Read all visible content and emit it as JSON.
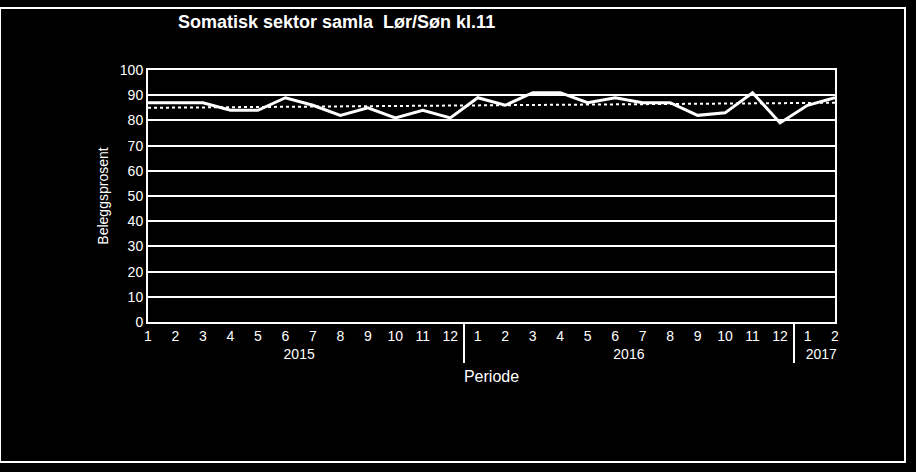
{
  "chart_data": {
    "type": "line",
    "title": "Somatisk sektor samla  Lør/Søn kl.11",
    "x_label": "Periode",
    "y_label": "Beleggsprosent",
    "categories": [
      [
        "2015",
        "1"
      ],
      [
        "2015",
        "2"
      ],
      [
        "2015",
        "3"
      ],
      [
        "2015",
        "4"
      ],
      [
        "2015",
        "5"
      ],
      [
        "2015",
        "6"
      ],
      [
        "2015",
        "7"
      ],
      [
        "2015",
        "8"
      ],
      [
        "2015",
        "9"
      ],
      [
        "2015",
        "10"
      ],
      [
        "2015",
        "11"
      ],
      [
        "2015",
        "12"
      ],
      [
        "2016",
        "1"
      ],
      [
        "2016",
        "2"
      ],
      [
        "2016",
        "3"
      ],
      [
        "2016",
        "4"
      ],
      [
        "2016",
        "5"
      ],
      [
        "2016",
        "6"
      ],
      [
        "2016",
        "7"
      ],
      [
        "2016",
        "8"
      ],
      [
        "2016",
        "9"
      ],
      [
        "2016",
        "10"
      ],
      [
        "2016",
        "11"
      ],
      [
        "2016",
        "12"
      ],
      [
        "2017",
        "1"
      ],
      [
        "2017",
        "2"
      ]
    ],
    "series": [
      {
        "color": "#ffffff",
        "line_style": "solid",
        "values": [
          87,
          87,
          87,
          84,
          84,
          89,
          86,
          82,
          85,
          81,
          84,
          81,
          89,
          86,
          91,
          91,
          87,
          89,
          87,
          87,
          82,
          83,
          91,
          79,
          86,
          89
        ]
      },
      {
        "color": "#ffffff",
        "line_style": "dotted",
        "values": [
          85,
          null,
          null,
          null,
          null,
          null,
          null,
          null,
          null,
          null,
          null,
          null,
          null,
          null,
          null,
          null,
          null,
          null,
          null,
          null,
          null,
          null,
          null,
          null,
          null,
          87
        ]
      }
    ],
    "ylim": [
      0,
      100
    ],
    "yticks": [
      0,
      10,
      20,
      30,
      40,
      50,
      60,
      70,
      80,
      90,
      100
    ],
    "grid": true
  }
}
